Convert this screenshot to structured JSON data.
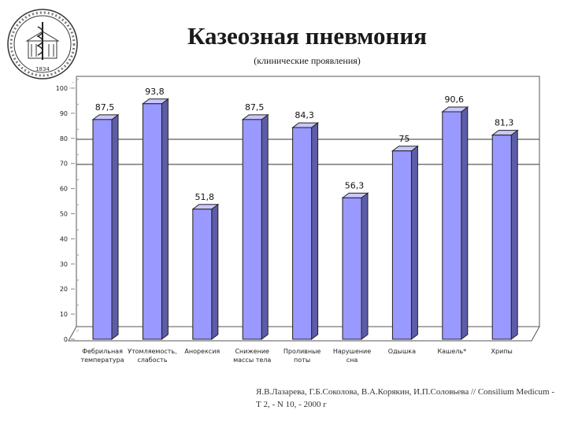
{
  "page": {
    "title": "Казеозная пневмония",
    "subtitle": "(клинические проявления)",
    "source": "Я.В.Лазарева, Г.Б.Соколова, В.А.Корякин, И.П.Соловьева // Consilium Medicum - Т 2, - N 10, - 2000 г"
  },
  "logo": {
    "year": "1834"
  },
  "chart_data": {
    "type": "bar",
    "title": "",
    "xlabel": "",
    "ylabel": "",
    "ylim": [
      0,
      100
    ],
    "yticks": [
      0,
      10,
      20,
      30,
      40,
      50,
      60,
      70,
      80,
      90,
      100
    ],
    "categories": [
      [
        "Фебрильная",
        "температура"
      ],
      [
        "Утомляемость,",
        "слабость"
      ],
      [
        "Анорексия"
      ],
      [
        "Снижение",
        "массы тела"
      ],
      [
        "Проливные",
        "поты"
      ],
      [
        "Нарушение",
        "сна"
      ],
      [
        "Одышка"
      ],
      [
        "Кашель*"
      ],
      [
        "Хрипы"
      ]
    ],
    "values": [
      87.5,
      93.8,
      51.8,
      87.5,
      84.3,
      56.3,
      75,
      90.6,
      81.3
    ],
    "labels": [
      "87,5",
      "93,8",
      "51,8",
      "87,5",
      "84,3",
      "56,3",
      "75",
      "90,6",
      "81,3"
    ],
    "reference_lines": [
      74,
      64
    ],
    "grid": false,
    "colors": {
      "bar": "#9999ff",
      "bar_side": "#5c5ca8",
      "bar_top": "#c8c8ff",
      "frame": "#555555"
    }
  }
}
